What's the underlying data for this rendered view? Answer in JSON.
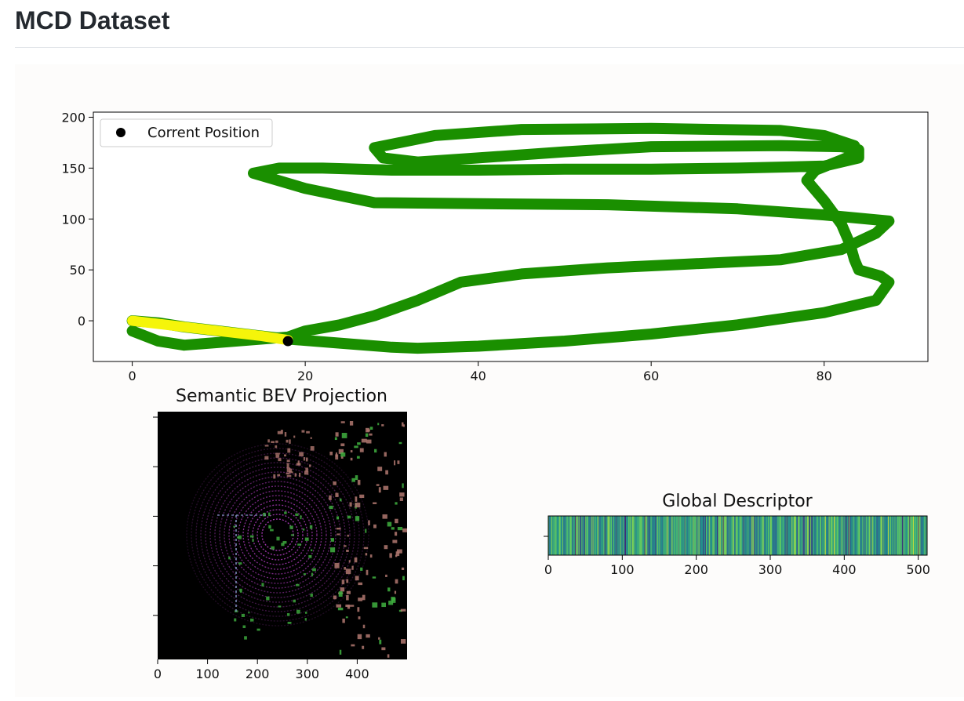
{
  "page": {
    "title": "MCD Dataset"
  },
  "colors": {
    "trajectory": "#1a8f00",
    "traversed": "#f5f50a",
    "current": "#000000",
    "bev_background": "#000000",
    "bev_scan": "#c040d0",
    "bev_vegetation": "#b07870",
    "bev_green": "#40b040"
  },
  "chart_data": [
    {
      "type": "scatter",
      "title": "",
      "xlabel": "",
      "ylabel": "",
      "xlim": [
        -4.5,
        92
      ],
      "ylim": [
        -40,
        205
      ],
      "x_ticks": [
        0,
        20,
        40,
        60,
        80
      ],
      "y_ticks": [
        0,
        50,
        100,
        150,
        200
      ],
      "legend": {
        "position": "top-left",
        "entries": [
          "Corrent Position"
        ]
      },
      "series": [
        {
          "role": "trajectory",
          "x": [
            0,
            3,
            6,
            10,
            14,
            18,
            24,
            30,
            33,
            40,
            50,
            60,
            70,
            80,
            86,
            87.5,
            86.5,
            84,
            83.5,
            83,
            82,
            80,
            78,
            79,
            82,
            84,
            83.5,
            80,
            75,
            60,
            45,
            35,
            28,
            29,
            33,
            40,
            50,
            60,
            75,
            82,
            84,
            84,
            80,
            70,
            60,
            50,
            40,
            30,
            22,
            17,
            14,
            20,
            28,
            40,
            55,
            70,
            80,
            87.5,
            86,
            82,
            75,
            65,
            55,
            45,
            38,
            33,
            28,
            24,
            20,
            18,
            12,
            6,
            3,
            0
          ],
          "y": [
            0,
            -2,
            -6,
            -10,
            -14,
            -18,
            -22,
            -26,
            -27,
            -25,
            -20,
            -13,
            -4,
            8,
            20,
            38,
            44,
            50,
            60,
            75,
            95,
            118,
            138,
            148,
            158,
            165,
            172,
            182,
            187,
            189,
            188,
            182,
            170,
            160,
            156,
            160,
            166,
            171,
            172,
            171,
            168,
            160,
            152,
            150,
            149,
            149,
            148,
            148,
            150,
            150,
            145,
            130,
            116,
            115,
            114,
            110,
            104,
            98,
            86,
            70,
            60,
            56,
            52,
            46,
            38,
            20,
            5,
            -4,
            -10,
            -16,
            -20,
            -24,
            -20,
            -10
          ]
        },
        {
          "role": "traversed",
          "x": [
            0,
            3,
            6,
            9,
            12,
            15,
            18
          ],
          "y": [
            0,
            -3,
            -6,
            -9,
            -12,
            -15,
            -19
          ]
        }
      ],
      "current_position": {
        "x": 18,
        "y": -20
      }
    },
    {
      "type": "heatmap",
      "title": "Semantic BEV Projection",
      "xlabel": "",
      "ylabel": "",
      "xlim": [
        0,
        500
      ],
      "ylim": [
        500,
        0
      ],
      "x_ticks": [
        0,
        100,
        200,
        300,
        400
      ]
    },
    {
      "type": "heatmap",
      "title": "Global Descriptor",
      "xlabel": "",
      "ylabel": "",
      "xlim": [
        0,
        512
      ],
      "x_ticks": [
        0,
        100,
        200,
        300,
        400,
        500
      ],
      "colormap": "viridis",
      "bins": 512
    }
  ]
}
